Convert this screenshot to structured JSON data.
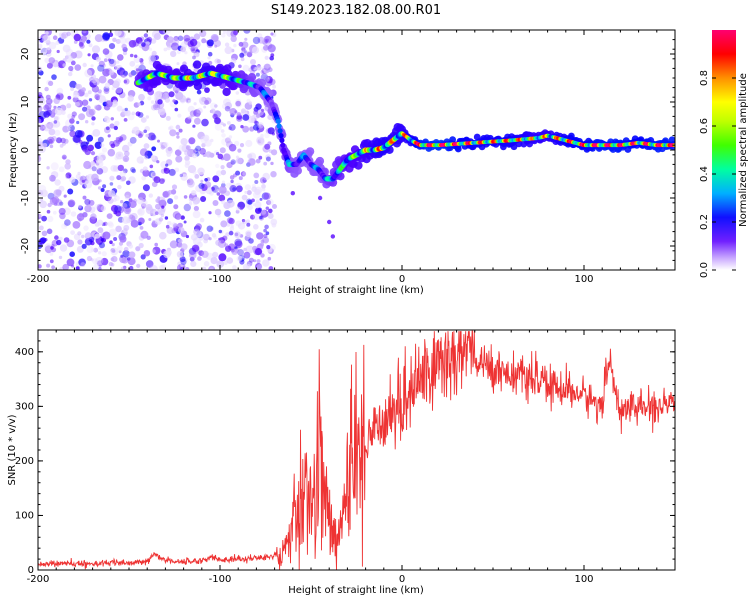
{
  "title": "S149.2023.182.08.00.R01",
  "chart_data": [
    {
      "type": "heatmap",
      "name": "spectrogram",
      "xlabel": "Height of straight line (km)",
      "ylabel": "Frequency (Hz)",
      "xlim": [
        -200,
        150
      ],
      "ylim": [
        -25,
        25
      ],
      "xticks": [
        -200,
        -100,
        0,
        100
      ],
      "yticks": [
        -20,
        -10,
        0,
        10,
        20
      ],
      "colorbar": {
        "label": "Normalized spectral amplitude",
        "range": [
          0,
          1
        ],
        "ticks": [
          0.0,
          0.2,
          0.4,
          0.6,
          0.8
        ],
        "tick_labels": [
          "0.0",
          "0.2",
          "0.4",
          "0.6",
          "0.8"
        ],
        "colormap": [
          "#ffffff",
          "#a070ff",
          "#5000ff",
          "#0000ff",
          "#00aaff",
          "#00ffaa",
          "#40ff00",
          "#ffff00",
          "#ff8000",
          "#ff0000",
          "#ff0080"
        ]
      },
      "ridge": {
        "x": [
          -145,
          -135,
          -125,
          -115,
          -105,
          -95,
          -85,
          -78,
          -72,
          -68,
          -65,
          -62,
          -58,
          -54,
          -50,
          -46,
          -42,
          -38,
          -34,
          -30,
          -25,
          -20,
          -15,
          -10,
          -5,
          0,
          5,
          10,
          20,
          40,
          60,
          75,
          80,
          85,
          90,
          95,
          100,
          110,
          120,
          130,
          140,
          150
        ],
        "y": [
          14,
          16,
          15,
          15,
          16,
          15,
          14,
          13,
          10,
          6,
          0,
          -3,
          -3,
          -1,
          -3,
          -4,
          -6,
          -6,
          -4,
          -2,
          -1,
          0,
          0,
          0.5,
          2,
          3.5,
          2,
          1,
          1,
          1.5,
          2,
          2.5,
          3,
          2.5,
          2,
          1.5,
          1,
          1,
          1,
          1.5,
          1,
          1
        ],
        "peak_amplitude": [
          0.5,
          0.6,
          0.6,
          0.65,
          0.65,
          0.6,
          0.45,
          0.35,
          0.3,
          0.3,
          0.4,
          0.4,
          0.35,
          0.35,
          0.35,
          0.35,
          0.4,
          0.45,
          0.5,
          0.55,
          0.6,
          0.65,
          0.7,
          0.75,
          0.7,
          0.7,
          0.75,
          0.9,
          0.95,
          0.8,
          0.8,
          0.7,
          0.7,
          0.75,
          0.8,
          0.85,
          0.85,
          0.9,
          0.9,
          0.85,
          0.9,
          0.9
        ]
      },
      "noise_region": [
        -200,
        -70
      ]
    },
    {
      "type": "line",
      "name": "snr",
      "xlabel": "Height of straight line (km)",
      "ylabel": "SNR (10 * v/v)",
      "xlim": [
        -200,
        150
      ],
      "ylim": [
        0,
        440
      ],
      "xticks": [
        -200,
        -100,
        0,
        100
      ],
      "yticks": [
        0,
        100,
        200,
        300,
        400
      ],
      "color": "#ee3333",
      "series": [
        {
          "x": [
            -200,
            -190,
            -180,
            -170,
            -160,
            -150,
            -140,
            -136,
            -130,
            -120,
            -110,
            -104,
            -100,
            -90,
            -80,
            -70,
            -65,
            -60,
            -55,
            -50,
            -47,
            -45,
            -42,
            -40,
            -35,
            -30,
            -25,
            -20,
            -15,
            -10,
            -5,
            0,
            5,
            10,
            20,
            30,
            38,
            40,
            50,
            60,
            70,
            80,
            90,
            100,
            110,
            114,
            120,
            130,
            140,
            150
          ],
          "values": [
            10,
            12,
            11,
            12,
            13,
            12,
            15,
            30,
            18,
            15,
            17,
            25,
            18,
            20,
            22,
            25,
            40,
            95,
            140,
            120,
            200,
            240,
            120,
            80,
            60,
            140,
            200,
            240,
            260,
            280,
            290,
            300,
            330,
            350,
            380,
            390,
            410,
            380,
            370,
            360,
            350,
            340,
            330,
            320,
            300,
            390,
            290,
            300,
            295,
            300
          ]
        }
      ]
    }
  ]
}
